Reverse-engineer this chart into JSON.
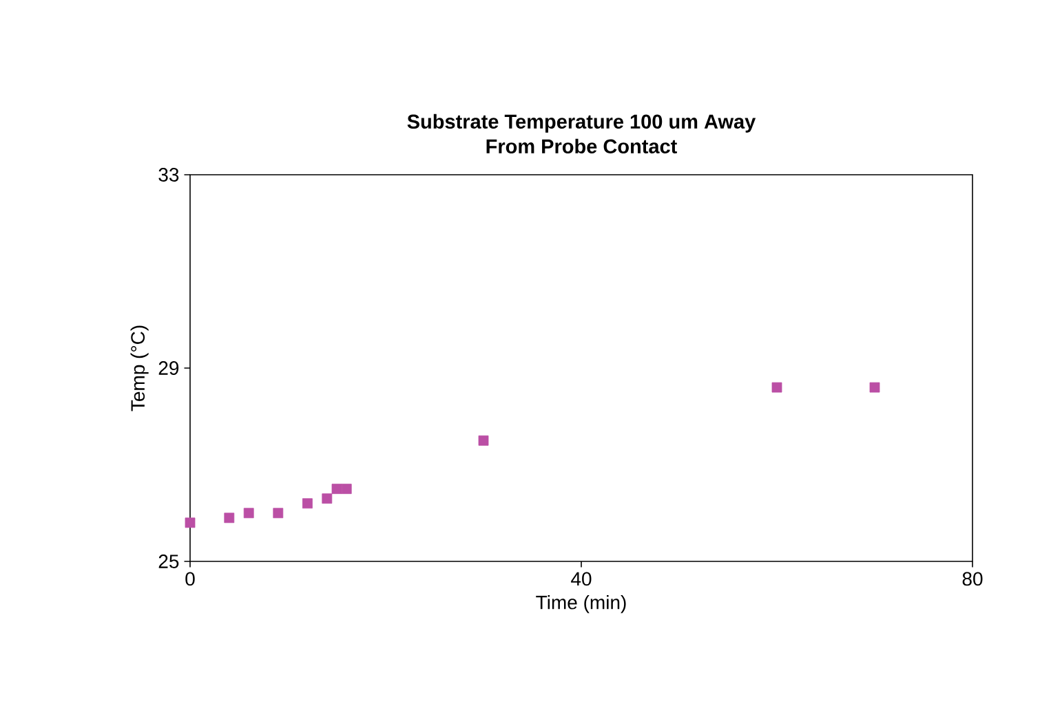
{
  "chart_data": {
    "type": "scatter",
    "title": "Substrate Temperature 100 um Away\nFrom Probe Contact",
    "xlabel": "Time (min)",
    "ylabel": "Temp (°C)",
    "x": [
      0,
      4,
      6,
      9,
      12,
      14,
      15,
      16,
      30,
      60,
      70
    ],
    "series": [
      {
        "color": "#bb4fa5",
        "values": [
          25.8,
          25.9,
          26.0,
          26.0,
          26.2,
          26.3,
          26.5,
          26.5,
          27.5,
          28.6,
          28.6
        ]
      }
    ],
    "xlim": [
      0,
      80
    ],
    "ylim": [
      25,
      33
    ],
    "xticks": [
      0,
      40,
      80
    ],
    "yticks": [
      25,
      29,
      33
    ],
    "marker": "square",
    "grid": false
  }
}
